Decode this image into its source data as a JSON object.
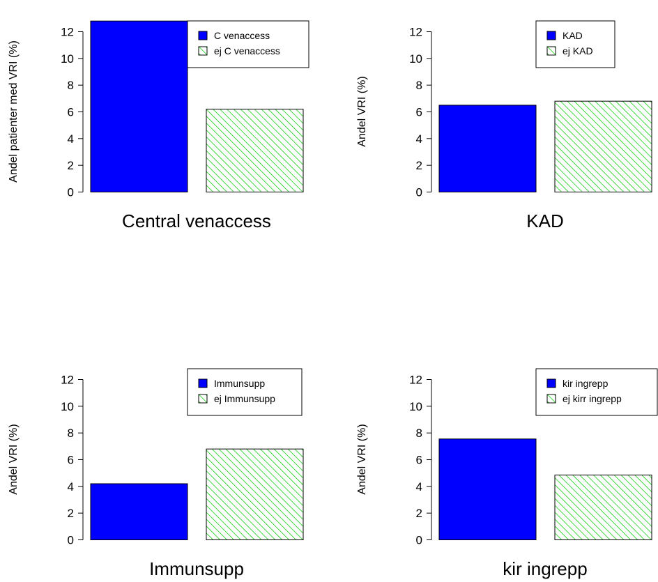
{
  "colors": {
    "bar_fill": "#0000ff",
    "hatch_line": "#00cc00",
    "hatch_bg": "#ffffff"
  },
  "chart_data": [
    {
      "type": "bar",
      "title": "",
      "xlabel": "Central venaccess",
      "ylabel": "Andel patienter med VRI (%)",
      "ylim": [
        0,
        12
      ],
      "yticks": [
        "0",
        "2",
        "4",
        "6",
        "8",
        "10",
        "12"
      ],
      "grid": false,
      "legend_position": "top-right",
      "categories": [
        "C venaccess",
        "ej C venaccess"
      ],
      "values": [
        12.8,
        6.2
      ],
      "legend": [
        "C venaccess",
        "ej C venaccess"
      ]
    },
    {
      "type": "bar",
      "title": "",
      "xlabel": "KAD",
      "ylabel": "Andel VRI (%)",
      "ylim": [
        0,
        12
      ],
      "yticks": [
        "0",
        "2",
        "4",
        "6",
        "8",
        "10",
        "12"
      ],
      "grid": false,
      "legend_position": "top-right",
      "categories": [
        "KAD",
        "ej KAD"
      ],
      "values": [
        6.5,
        6.8
      ],
      "legend": [
        "KAD",
        "ej KAD"
      ]
    },
    {
      "type": "bar",
      "title": "",
      "xlabel": "Immunsupp",
      "ylabel": "Andel VRI (%)",
      "ylim": [
        0,
        12
      ],
      "yticks": [
        "0",
        "2",
        "4",
        "6",
        "8",
        "10",
        "12"
      ],
      "grid": false,
      "legend_position": "top-right",
      "categories": [
        "Immunsupp",
        "ej Immunsupp"
      ],
      "values": [
        4.2,
        6.8
      ],
      "legend": [
        "Immunsupp",
        "ej Immunsupp"
      ]
    },
    {
      "type": "bar",
      "title": "",
      "xlabel": "kir ingrepp",
      "ylabel": "Andel VRI (%)",
      "ylim": [
        0,
        12
      ],
      "yticks": [
        "0",
        "2",
        "4",
        "6",
        "8",
        "10",
        "12"
      ],
      "grid": false,
      "legend_position": "top-right",
      "categories": [
        "kir ingrepp",
        "ej kirr ingrepp"
      ],
      "values": [
        7.55,
        4.85
      ],
      "legend": [
        "kir ingrepp",
        "ej kirr ingrepp"
      ]
    }
  ]
}
